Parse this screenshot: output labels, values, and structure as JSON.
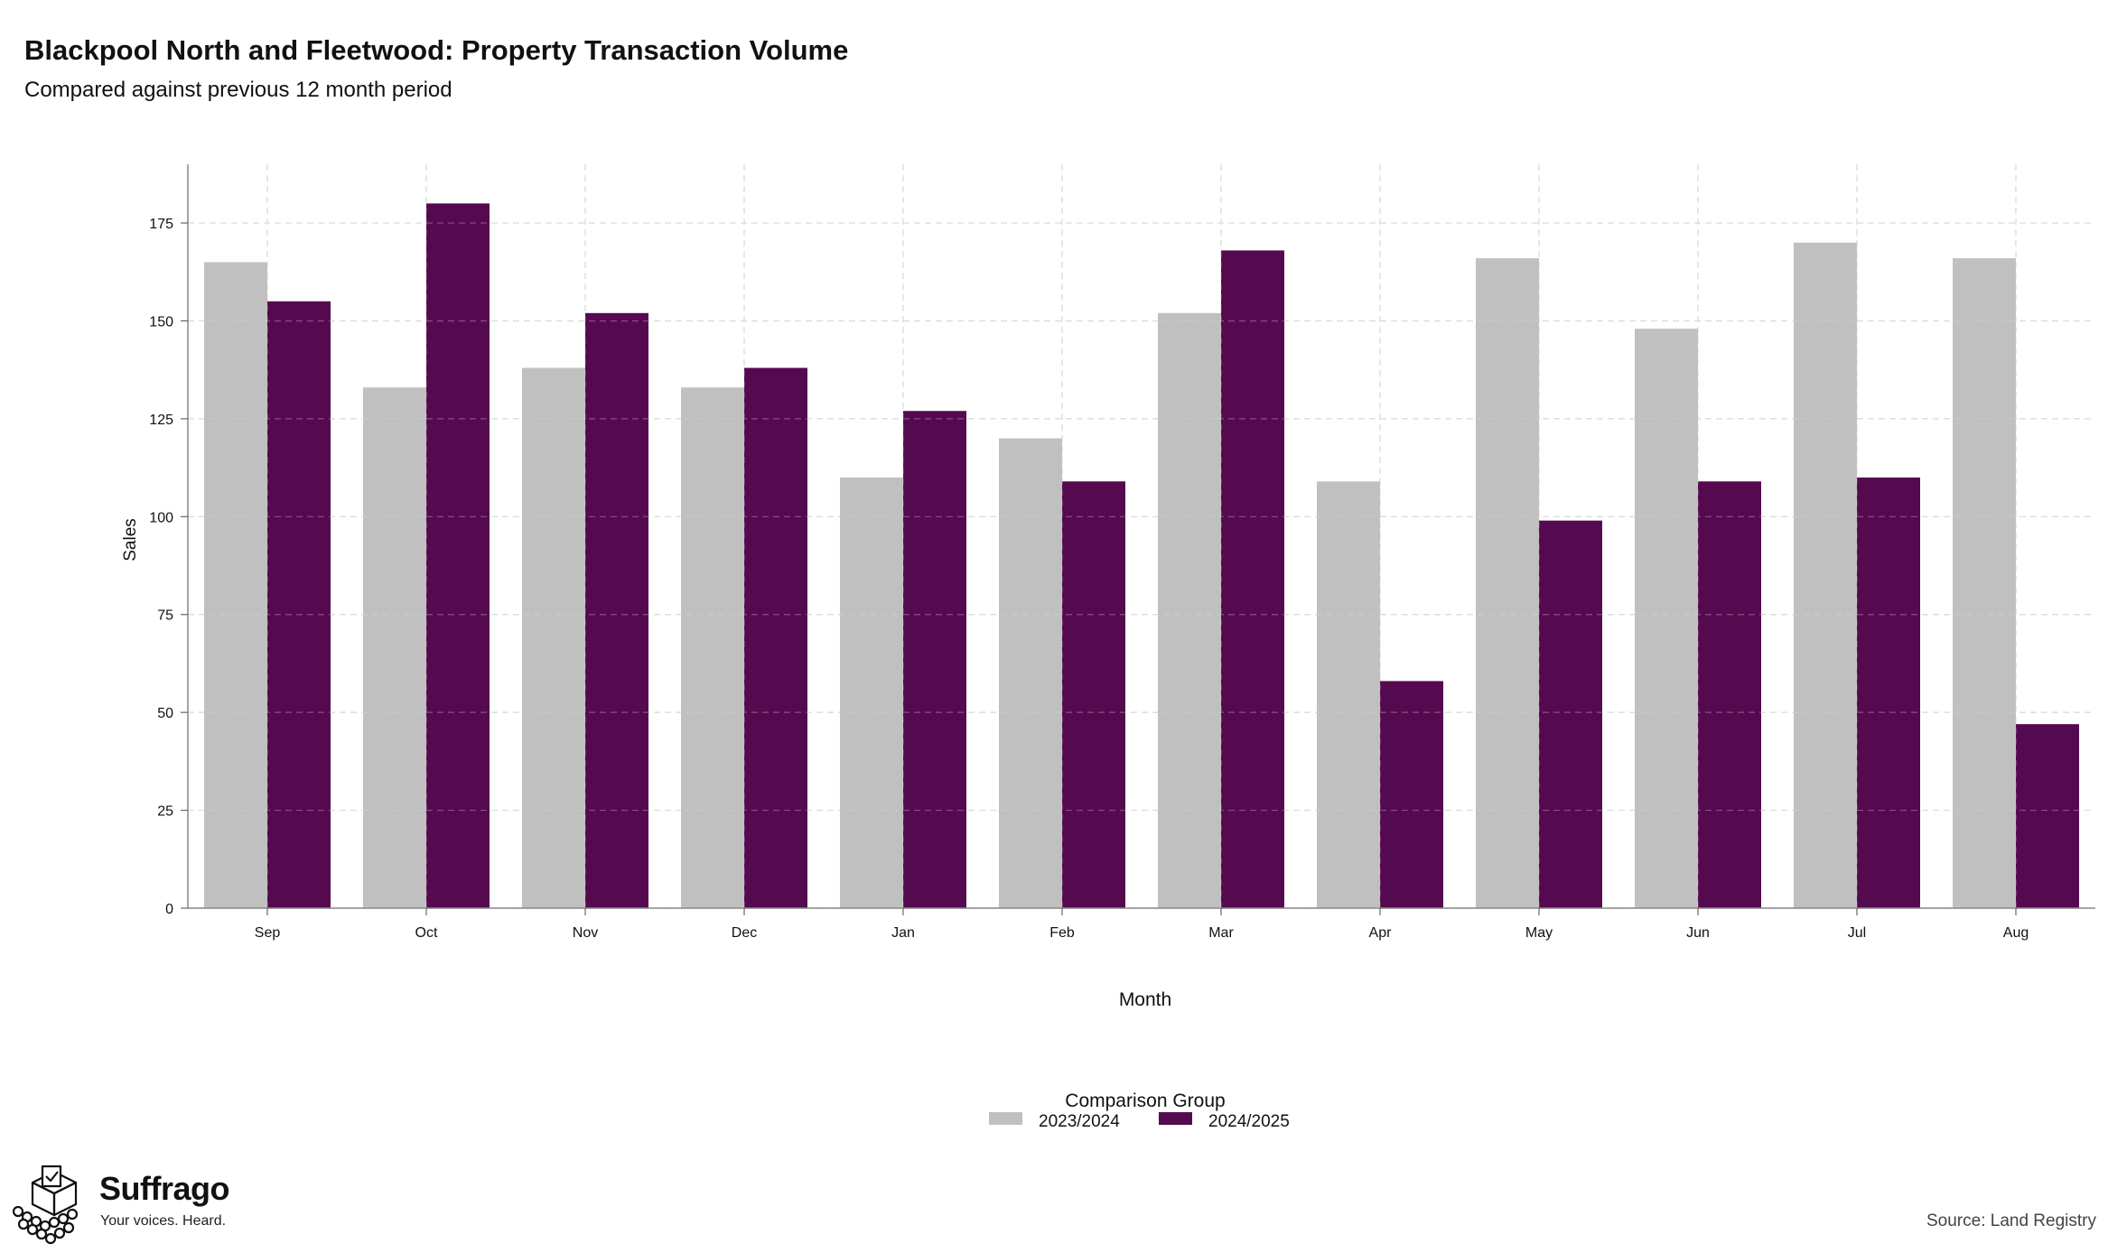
{
  "chart_data": {
    "type": "bar",
    "title": "Blackpool North and Fleetwood: Property Transaction Volume",
    "subtitle": "Compared against previous 12 month period",
    "xlabel": "Month",
    "ylabel": "Sales",
    "ylim": [
      0,
      190
    ],
    "yticks": [
      0,
      25,
      50,
      75,
      100,
      125,
      150,
      175
    ],
    "grid": true,
    "legend_title": "Comparison Group",
    "legend_position": "bottom",
    "categories": [
      "Sep",
      "Oct",
      "Nov",
      "Dec",
      "Jan",
      "Feb",
      "Mar",
      "Apr",
      "May",
      "Jun",
      "Jul",
      "Aug"
    ],
    "series": [
      {
        "name": "2023/2024",
        "color": "#c0c0c0",
        "values": [
          165,
          133,
          138,
          133,
          110,
          120,
          152,
          109,
          166,
          148,
          170,
          166
        ]
      },
      {
        "name": "2024/2025",
        "color": "#550a50",
        "values": [
          155,
          180,
          152,
          138,
          127,
          109,
          168,
          58,
          99,
          109,
          110,
          47
        ]
      }
    ]
  },
  "branding": {
    "name": "Suffrago",
    "tagline": "Your voices. Heard.",
    "logo_icon": "ballot-box-crowd-icon"
  },
  "source": "Source: Land Registry"
}
